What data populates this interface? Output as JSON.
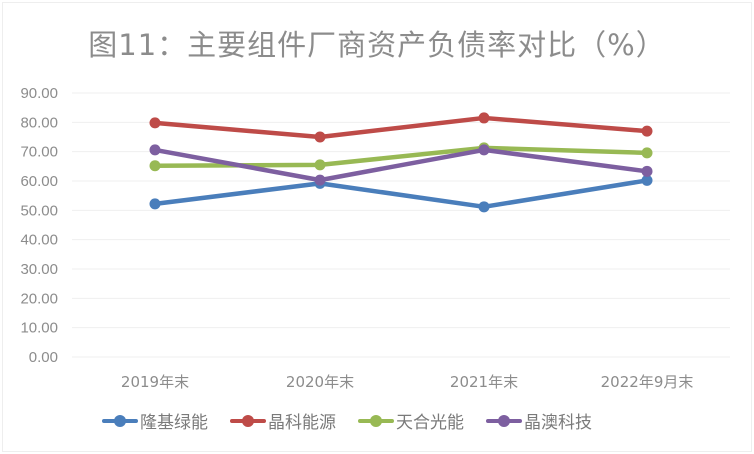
{
  "title": "图11：主要组件厂商资产负债率对比（%）",
  "chart_data": {
    "type": "line",
    "title": "图11：主要组件厂商资产负债率对比（%）",
    "xlabel": "",
    "ylabel": "",
    "categories": [
      "2019年末",
      "2020年末",
      "2021年末",
      "2022年9月末"
    ],
    "ylim": [
      0,
      90
    ],
    "yticks": [
      "0.00",
      "10.00",
      "20.00",
      "30.00",
      "40.00",
      "50.00",
      "60.00",
      "70.00",
      "80.00",
      "90.00"
    ],
    "grid": true,
    "legend_position": "bottom",
    "series": [
      {
        "name": "隆基绿能",
        "color": "#4a7ebb",
        "values": [
          52.2,
          59.2,
          51.2,
          60.2
        ]
      },
      {
        "name": "晶科能源",
        "color": "#be4b48",
        "values": [
          79.8,
          75.0,
          81.5,
          77.0
        ]
      },
      {
        "name": "天合光能",
        "color": "#98b954",
        "values": [
          65.2,
          65.5,
          71.3,
          69.6
        ]
      },
      {
        "name": "晶澳科技",
        "color": "#7d5fa0",
        "values": [
          70.6,
          60.3,
          70.6,
          63.3
        ]
      }
    ]
  },
  "legend": [
    {
      "label": "隆基绿能",
      "color": "#4a7ebb"
    },
    {
      "label": "晶科能源",
      "color": "#be4b48"
    },
    {
      "label": "天合光能",
      "color": "#98b954"
    },
    {
      "label": "晶澳科技",
      "color": "#7d5fa0"
    }
  ]
}
